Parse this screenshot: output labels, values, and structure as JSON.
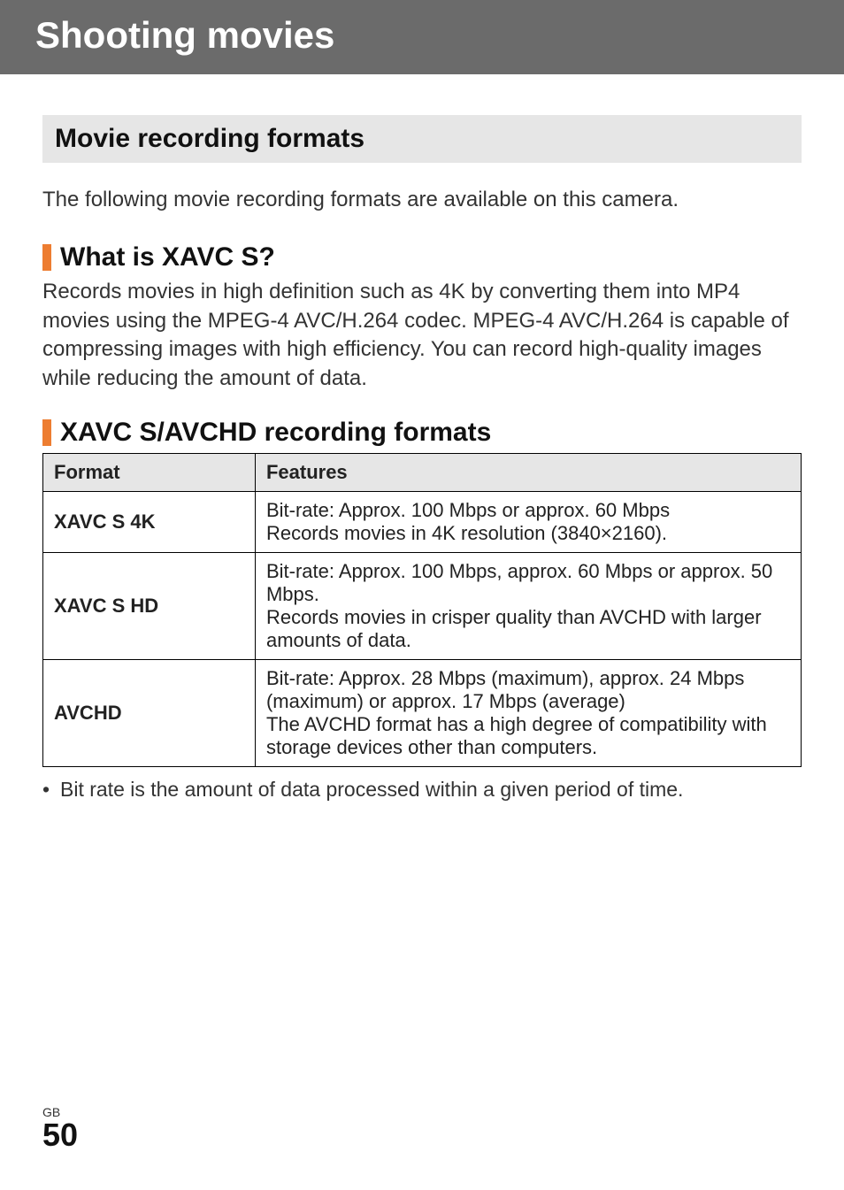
{
  "chapter_title": "Shooting movies",
  "section_heading": "Movie recording formats",
  "intro": "The following movie recording formats are available on this camera.",
  "sub1": {
    "title": "What is XAVC S?",
    "body": "Records movies in high definition such as 4K by converting them into MP4 movies using the MPEG-4 AVC/H.264 codec. MPEG-4 AVC/H.264 is capable of compressing images with high efficiency. You can record high-quality images while reducing the amount of data."
  },
  "sub2": {
    "title": "XAVC S/AVCHD recording formats"
  },
  "table": {
    "headers": [
      "Format",
      "Features"
    ],
    "rows": [
      {
        "format": "XAVC S 4K",
        "features": "Bit-rate: Approx. 100 Mbps or approx. 60 Mbps\nRecords movies in 4K resolution (3840×2160)."
      },
      {
        "format": "XAVC S HD",
        "features": "Bit-rate: Approx. 100 Mbps, approx. 60 Mbps or approx. 50 Mbps.\nRecords movies in crisper quality than AVCHD with larger amounts of data."
      },
      {
        "format": "AVCHD",
        "features": "Bit-rate: Approx. 28 Mbps (maximum), approx. 24 Mbps (maximum) or approx. 17 Mbps (average)\nThe AVCHD format has a high degree of compatibility with storage devices other than computers."
      }
    ]
  },
  "note": "Bit rate is the amount of data processed within a given period of time.",
  "footer": {
    "region": "GB",
    "page": "50"
  },
  "styling": {
    "page_bg": "#ffffff",
    "header_bg": "#6b6b6b",
    "header_text_color": "#ffffff",
    "section_bg": "#e6e6e6",
    "accent_bar_color": "#ed7d31",
    "border_color": "#000000",
    "body_text_color": "#333333",
    "heading_text_color": "#111111",
    "chapter_title_fontsize": 42,
    "section_heading_fontsize": 30,
    "subhead_fontsize": 30,
    "body_fontsize": 24,
    "table_fontsize": 22,
    "page_num_fontsize": 36,
    "region_label_fontsize": 14
  }
}
